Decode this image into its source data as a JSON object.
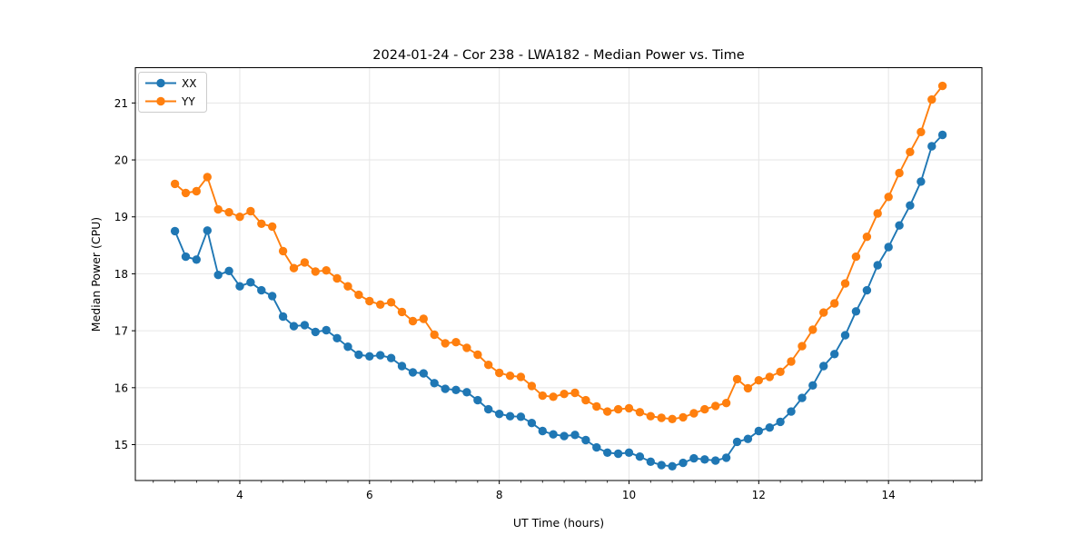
{
  "figure": {
    "background": "#ffffff",
    "plot_border_color": "#000000",
    "grid_color": "#e6e6e6"
  },
  "chart_data": {
    "type": "line",
    "title": "2024-01-24 - Cor 238 - LWA182 - Median Power vs. Time",
    "xlabel": "UT Time (hours)",
    "ylabel": "Median Power (CPU)",
    "xlim": [
      2.39,
      15.44
    ],
    "ylim": [
      14.37,
      21.62
    ],
    "xticks": [
      4,
      6,
      8,
      10,
      12,
      14
    ],
    "yticks": [
      15,
      16,
      17,
      18,
      19,
      20,
      21
    ],
    "x_minor_step": 0.33333,
    "grid": true,
    "legend_position": "upper-left",
    "marker": "circle",
    "x": [
      3.0,
      3.167,
      3.333,
      3.5,
      3.667,
      3.833,
      4.0,
      4.167,
      4.333,
      4.5,
      4.667,
      4.833,
      5.0,
      5.167,
      5.333,
      5.5,
      5.667,
      5.833,
      6.0,
      6.167,
      6.333,
      6.5,
      6.667,
      6.833,
      7.0,
      7.167,
      7.333,
      7.5,
      7.667,
      7.833,
      8.0,
      8.167,
      8.333,
      8.5,
      8.667,
      8.833,
      9.0,
      9.167,
      9.333,
      9.5,
      9.667,
      9.833,
      10.0,
      10.167,
      10.333,
      10.5,
      10.667,
      10.833,
      11.0,
      11.167,
      11.333,
      11.5,
      11.667,
      11.833,
      12.0,
      12.167,
      12.333,
      12.5,
      12.667,
      12.833,
      13.0,
      13.167,
      13.333,
      13.5,
      13.667,
      13.833,
      14.0,
      14.167,
      14.333,
      14.5,
      14.667,
      14.833
    ],
    "series": [
      {
        "name": "XX",
        "color": "#1f77b4",
        "values": [
          18.75,
          18.3,
          18.25,
          18.76,
          17.98,
          18.05,
          17.78,
          17.85,
          17.71,
          17.61,
          17.25,
          17.08,
          17.1,
          16.98,
          17.01,
          16.87,
          16.72,
          16.58,
          16.55,
          16.57,
          16.52,
          16.38,
          16.27,
          16.25,
          16.08,
          15.98,
          15.96,
          15.92,
          15.78,
          15.62,
          15.54,
          15.5,
          15.49,
          15.38,
          15.24,
          15.18,
          15.15,
          15.17,
          15.08,
          14.95,
          14.86,
          14.84,
          14.86,
          14.79,
          14.7,
          14.64,
          14.62,
          14.68,
          14.76,
          14.74,
          14.72,
          14.77,
          15.05,
          15.1,
          15.24,
          15.3,
          15.4,
          15.58,
          15.82,
          16.04,
          16.38,
          16.59,
          16.92,
          17.34,
          17.71,
          18.15,
          18.47,
          18.85,
          19.2,
          19.62,
          20.24,
          20.44
        ]
      },
      {
        "name": "YY",
        "color": "#ff7f0e",
        "values": [
          19.58,
          19.42,
          19.45,
          19.7,
          19.13,
          19.08,
          19.0,
          19.1,
          18.88,
          18.83,
          18.4,
          18.1,
          18.2,
          18.04,
          18.06,
          17.92,
          17.78,
          17.63,
          17.52,
          17.46,
          17.5,
          17.33,
          17.17,
          17.21,
          16.93,
          16.78,
          16.8,
          16.7,
          16.58,
          16.4,
          16.26,
          16.21,
          16.19,
          16.03,
          15.86,
          15.84,
          15.89,
          15.91,
          15.78,
          15.67,
          15.58,
          15.62,
          15.64,
          15.57,
          15.5,
          15.47,
          15.45,
          15.48,
          15.55,
          15.62,
          15.68,
          15.73,
          16.15,
          15.99,
          16.13,
          16.19,
          16.28,
          16.46,
          16.73,
          17.02,
          17.32,
          17.48,
          17.83,
          18.3,
          18.65,
          19.06,
          19.35,
          19.77,
          20.14,
          20.49,
          21.06,
          21.3
        ]
      }
    ]
  }
}
